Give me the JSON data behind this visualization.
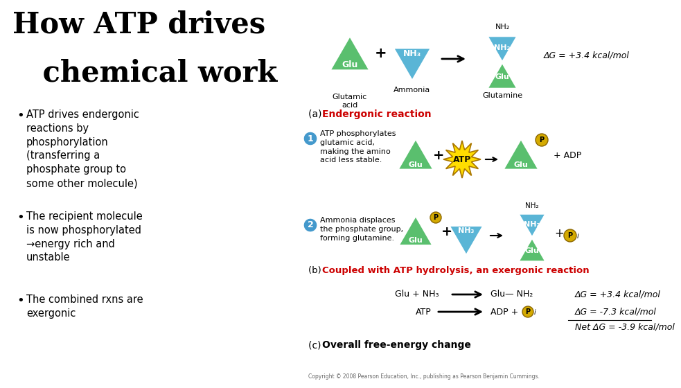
{
  "title_line1": "How ATP drives",
  "title_line2": "   chemical work",
  "bullet1": "ATP drives endergonic\nreactions by\nphosphorylation\n(transferring a\nphosphate group to\nsome other molecule)",
  "bullet2": "The recipient molecule\nis now phosphorylated\n→energy rich and\nunstable",
  "bullet3": "The combined rxns are\nexergonic",
  "bg_color": "#ffffff",
  "title_color": "#000000",
  "green_tri": "#5abf6e",
  "blue_tri": "#5ab5d6",
  "red_color": "#cc0000",
  "atp_color": "#ffdd00",
  "phosphate_color": "#d4aa00",
  "section_a": "(a)",
  "section_a_red": "Endergonic reaction",
  "section_b": "(b)",
  "section_b_red": "Coupled with ATP hydrolysis, an exergonic reaction",
  "section_c": "(c)",
  "section_c_bold": "Overall free-energy change",
  "delta_g_1": "ΔG = +3.4 kcal/mol",
  "delta_g_2": "ΔG = +3.4 kcal/mol",
  "delta_g_3": "ΔG = -7.3 kcal/mol",
  "delta_g_net": "Net ΔG = -3.9 kcal/mol",
  "copyright": "Copyright © 2008 Pearson Education, Inc., publishing as Pearson Benjamin Cummings."
}
